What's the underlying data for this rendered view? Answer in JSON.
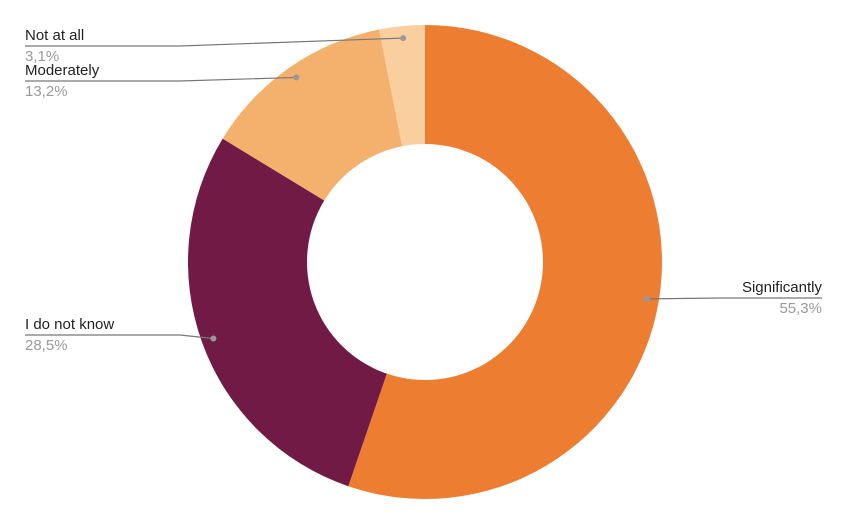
{
  "chart_data": {
    "type": "donut",
    "categories": [
      "Significantly",
      "I do not know",
      "Moderately",
      "Not at all"
    ],
    "values": [
      55.3,
      28.5,
      13.2,
      3.1
    ],
    "value_labels": [
      "55,3%",
      "28,5%",
      "13,2%",
      "3,1%"
    ],
    "colors": [
      "#ED7D31",
      "#721A46",
      "#F4B16D",
      "#F9CFA0"
    ]
  }
}
